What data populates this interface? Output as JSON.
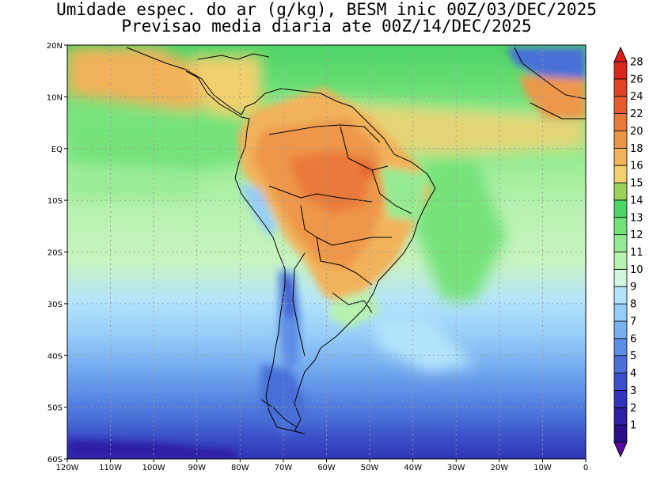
{
  "title": {
    "line1": "Umidade espec. do ar (g/kg), BESM inic 00Z/03/DEC/2025",
    "line2": "Previsao media diaria ate 00Z/14/DEC/2025"
  },
  "map": {
    "lon_range": [
      -120,
      0
    ],
    "lat_range": [
      -60,
      20
    ],
    "lon_ticks": [
      {
        "value": -120,
        "label": "120W"
      },
      {
        "value": -110,
        "label": "110W"
      },
      {
        "value": -100,
        "label": "100W"
      },
      {
        "value": -90,
        "label": "90W"
      },
      {
        "value": -80,
        "label": "80W"
      },
      {
        "value": -70,
        "label": "70W"
      },
      {
        "value": -60,
        "label": "60W"
      },
      {
        "value": -50,
        "label": "50W"
      },
      {
        "value": -40,
        "label": "40W"
      },
      {
        "value": -30,
        "label": "30W"
      },
      {
        "value": -20,
        "label": "20W"
      },
      {
        "value": -10,
        "label": "10W"
      },
      {
        "value": 0,
        "label": "0"
      }
    ],
    "lat_ticks": [
      {
        "value": 20,
        "label": "20N"
      },
      {
        "value": 10,
        "label": "10N"
      },
      {
        "value": 0,
        "label": "EQ"
      },
      {
        "value": -10,
        "label": "10S"
      },
      {
        "value": -20,
        "label": "20S"
      },
      {
        "value": -30,
        "label": "30S"
      },
      {
        "value": -40,
        "label": "40S"
      },
      {
        "value": -50,
        "label": "50S"
      },
      {
        "value": -60,
        "label": "60S"
      }
    ]
  },
  "colorbar": {
    "levels": [
      {
        "label": "1",
        "color": "#2b0f8a"
      },
      {
        "label": "2",
        "color": "#2e1fa6"
      },
      {
        "label": "3",
        "color": "#3134b8"
      },
      {
        "label": "4",
        "color": "#3a4fc8"
      },
      {
        "label": "5",
        "color": "#4a6fd8"
      },
      {
        "label": "6",
        "color": "#5c8ee6"
      },
      {
        "label": "7",
        "color": "#78b0f0"
      },
      {
        "label": "8",
        "color": "#96cdf8"
      },
      {
        "label": "9",
        "color": "#b4e4fc"
      },
      {
        "label": "10",
        "color": "#d2f6e0"
      },
      {
        "label": "11",
        "color": "#b8f2b0"
      },
      {
        "label": "12",
        "color": "#96eb92"
      },
      {
        "label": "13",
        "color": "#74e27a"
      },
      {
        "label": "14",
        "color": "#4cd466"
      },
      {
        "label": "15",
        "color": "#9cd25a"
      },
      {
        "label": "16",
        "color": "#f2d06e"
      },
      {
        "label": "18",
        "color": "#f2b25a"
      },
      {
        "label": "20",
        "color": "#ee9648"
      },
      {
        "label": "22",
        "color": "#ea7a3a"
      },
      {
        "label": "24",
        "color": "#e65e2e"
      },
      {
        "label": "26",
        "color": "#e04424"
      },
      {
        "label": "28",
        "color": "#d8281e"
      }
    ],
    "under_color": "#5a0aa0",
    "over_color": "#e0201a"
  }
}
